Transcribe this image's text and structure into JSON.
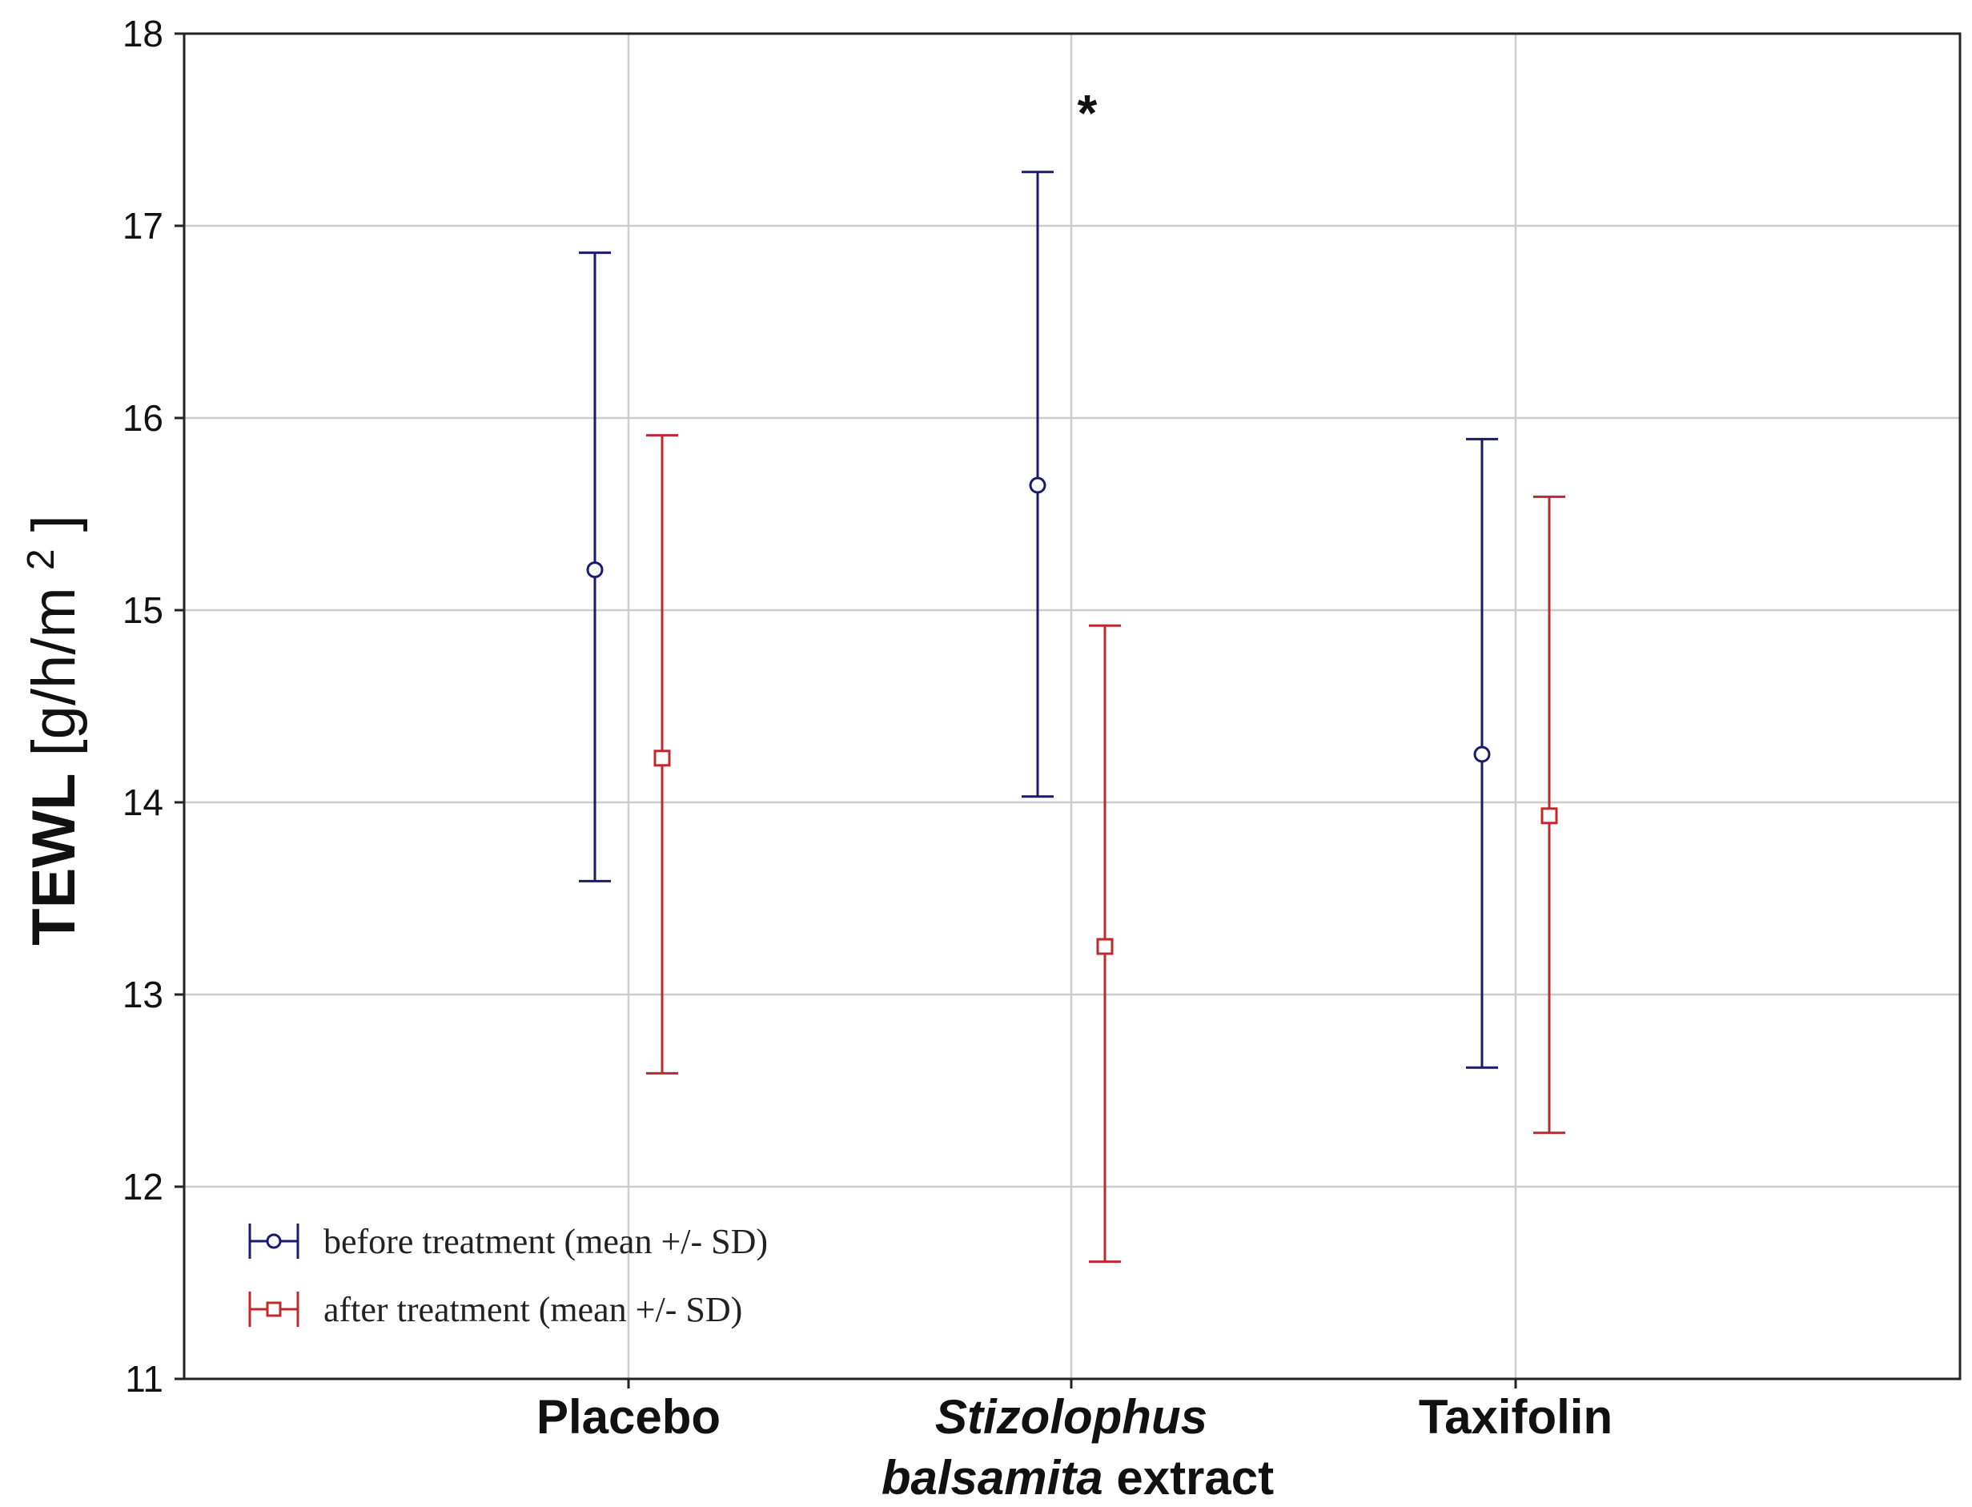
{
  "chart_data": {
    "type": "errorbar",
    "categories": [
      {
        "name": "placebo",
        "parts": [
          {
            "text": "Placebo",
            "italic": false
          }
        ],
        "line2": []
      },
      {
        "name": "stizolophus",
        "parts": [
          {
            "text": "Stizolophus",
            "italic": true
          }
        ],
        "line2": [
          {
            "text": "balsamita",
            "italic": true
          },
          {
            "text": " extract",
            "italic": false
          }
        ]
      },
      {
        "name": "taxifolin",
        "parts": [
          {
            "text": "Taxifolin",
            "italic": false
          }
        ],
        "line2": []
      }
    ],
    "series": [
      {
        "name": "before treatment (mean  +/- SD)",
        "marker": "circle",
        "color": "#1a1a6e",
        "means": [
          15.21,
          15.65,
          14.25
        ],
        "lower": [
          13.59,
          14.03,
          12.62
        ],
        "upper": [
          16.86,
          17.28,
          15.89
        ]
      },
      {
        "name": "after treatment (mean +/- SD)",
        "marker": "square",
        "color": "#c0282d",
        "means": [
          14.23,
          13.25,
          13.93
        ],
        "lower": [
          12.59,
          11.61,
          12.28
        ],
        "upper": [
          15.91,
          14.92,
          15.59
        ]
      }
    ],
    "ylim": [
      11,
      18
    ],
    "yticks": [
      11,
      12,
      13,
      14,
      15,
      16,
      17,
      18
    ],
    "ylabel_bold": "TEWL",
    "ylabel_unit": "[g/h/m",
    "ylabel_sup": "2",
    "ylabel_close": "]",
    "xlabel": "",
    "grid": true,
    "legend_position": "bottom-left",
    "annotations": [
      {
        "text": "*",
        "category_index": 1,
        "y": 17.62
      }
    ]
  }
}
